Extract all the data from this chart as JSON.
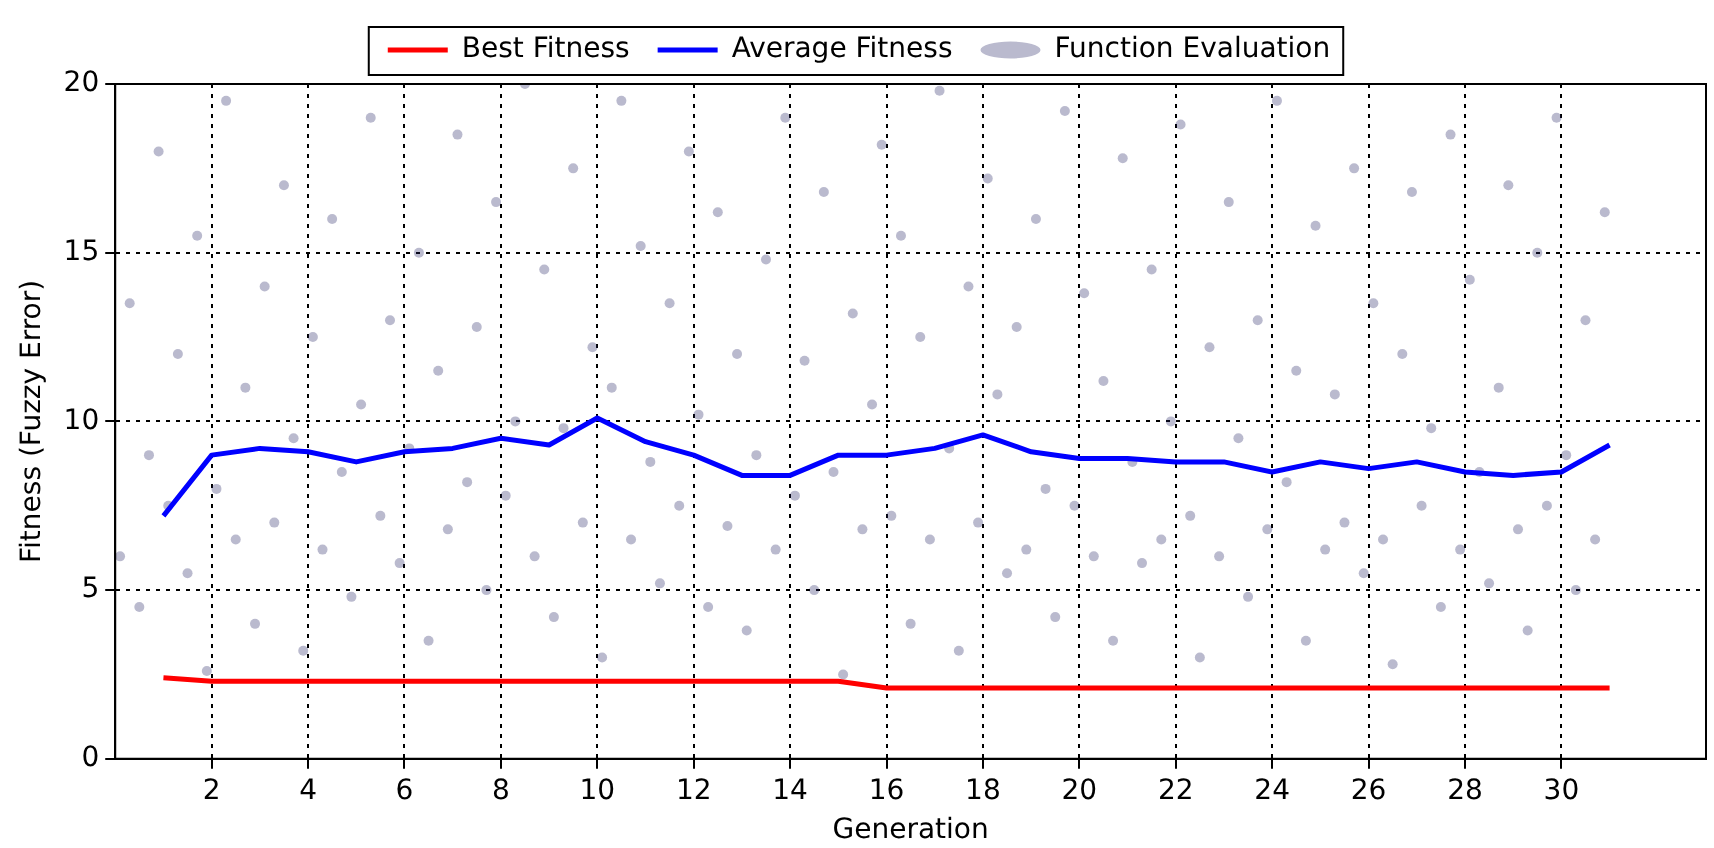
{
  "chart_data": {
    "type": "line",
    "xlabel": "Generation",
    "ylabel": "Fitness (Fuzzy Error)",
    "xlim": [
      0,
      33
    ],
    "ylim": [
      0,
      20
    ],
    "xticks": [
      2,
      4,
      6,
      8,
      10,
      12,
      14,
      16,
      18,
      20,
      22,
      24,
      26,
      28,
      30
    ],
    "yticks": [
      0,
      5,
      10,
      15,
      20
    ],
    "grid": true,
    "legend": "top",
    "line_style": "solid",
    "series": [
      {
        "name": "Best Fitness",
        "color": "#ff0000",
        "x": [
          1,
          2,
          3,
          4,
          5,
          6,
          7,
          8,
          9,
          10,
          11,
          12,
          13,
          14,
          15,
          16,
          17,
          18,
          19,
          20,
          21,
          22,
          23,
          24,
          25,
          26,
          27,
          28,
          29,
          30,
          31
        ],
        "values": [
          2.4,
          2.3,
          2.3,
          2.3,
          2.3,
          2.3,
          2.3,
          2.3,
          2.3,
          2.3,
          2.3,
          2.3,
          2.3,
          2.3,
          2.3,
          2.1,
          2.1,
          2.1,
          2.1,
          2.1,
          2.1,
          2.1,
          2.1,
          2.1,
          2.1,
          2.1,
          2.1,
          2.1,
          2.1,
          2.1,
          2.1
        ]
      },
      {
        "name": "Average Fitness",
        "color": "#0000ff",
        "x": [
          1,
          2,
          3,
          4,
          5,
          6,
          7,
          8,
          9,
          10,
          11,
          12,
          13,
          14,
          15,
          16,
          17,
          18,
          19,
          20,
          21,
          22,
          23,
          24,
          25,
          26,
          27,
          28,
          29,
          30,
          31
        ],
        "values": [
          7.2,
          9.0,
          9.2,
          9.1,
          8.8,
          9.1,
          9.2,
          9.5,
          9.3,
          10.1,
          9.4,
          9.0,
          8.4,
          8.4,
          9.0,
          9.0,
          9.2,
          9.6,
          9.1,
          8.9,
          8.9,
          8.8,
          8.8,
          8.5,
          8.8,
          8.6,
          8.8,
          8.5,
          8.4,
          8.5,
          9.3
        ]
      },
      {
        "name": "Function Evaluation",
        "type": "scatter",
        "marker": "circle",
        "color": "#1a1a5e",
        "x": [
          0.1,
          0.3,
          0.5,
          0.7,
          0.9,
          1.1,
          1.3,
          1.5,
          1.7,
          1.9,
          2.1,
          2.3,
          2.5,
          2.7,
          2.9,
          3.1,
          3.3,
          3.5,
          3.7,
          3.9,
          4.1,
          4.3,
          4.5,
          4.7,
          4.9,
          5.1,
          5.3,
          5.5,
          5.7,
          5.9,
          6.1,
          6.3,
          6.5,
          6.7,
          6.9,
          7.1,
          7.3,
          7.5,
          7.7,
          7.9,
          8.1,
          8.3,
          8.5,
          8.7,
          8.9,
          9.1,
          9.3,
          9.5,
          9.7,
          9.9,
          10.1,
          10.3,
          10.5,
          10.7,
          10.9,
          11.1,
          11.3,
          11.5,
          11.7,
          11.9,
          12.1,
          12.3,
          12.5,
          12.7,
          12.9,
          13.1,
          13.3,
          13.5,
          13.7,
          13.9,
          14.1,
          14.3,
          14.5,
          14.7,
          14.9,
          15.1,
          15.3,
          15.5,
          15.7,
          15.9,
          16.1,
          16.3,
          16.5,
          16.7,
          16.9,
          17.1,
          17.3,
          17.5,
          17.7,
          17.9,
          18.1,
          18.3,
          18.5,
          18.7,
          18.9,
          19.1,
          19.3,
          19.5,
          19.7,
          19.9,
          20.1,
          20.3,
          20.5,
          20.7,
          20.9,
          21.1,
          21.3,
          21.5,
          21.7,
          21.9,
          22.1,
          22.3,
          22.5,
          22.7,
          22.9,
          23.1,
          23.3,
          23.5,
          23.7,
          23.9,
          24.1,
          24.3,
          24.5,
          24.7,
          24.9,
          25.1,
          25.3,
          25.5,
          25.7,
          25.9,
          26.1,
          26.3,
          26.5,
          26.7,
          26.9,
          27.1,
          27.3,
          27.5,
          27.7,
          27.9,
          28.1,
          28.3,
          28.5,
          28.7,
          28.9,
          29.1,
          29.3,
          29.5,
          29.7,
          29.9,
          30.1,
          30.3,
          30.5,
          30.7,
          30.9
        ],
        "values": [
          6.0,
          13.5,
          4.5,
          9.0,
          18.0,
          7.5,
          12.0,
          5.5,
          15.5,
          2.6,
          8.0,
          19.5,
          6.5,
          11.0,
          4.0,
          14.0,
          7.0,
          17.0,
          9.5,
          3.2,
          12.5,
          6.2,
          16.0,
          8.5,
          4.8,
          10.5,
          19.0,
          7.2,
          13.0,
          5.8,
          9.2,
          15.0,
          3.5,
          11.5,
          6.8,
          18.5,
          8.2,
          12.8,
          5.0,
          16.5,
          7.8,
          10.0,
          20.0,
          6.0,
          14.5,
          4.2,
          9.8,
          17.5,
          7.0,
          12.2,
          3.0,
          11.0,
          19.5,
          6.5,
          15.2,
          8.8,
          5.2,
          13.5,
          7.5,
          18.0,
          10.2,
          4.5,
          16.2,
          6.9,
          12.0,
          3.8,
          9.0,
          14.8,
          6.2,
          19.0,
          7.8,
          11.8,
          5.0,
          16.8,
          8.5,
          2.5,
          13.2,
          6.8,
          10.5,
          18.2,
          7.2,
          15.5,
          4.0,
          12.5,
          6.5,
          19.8,
          9.2,
          3.2,
          14.0,
          7.0,
          17.2,
          10.8,
          5.5,
          12.8,
          6.2,
          16.0,
          8.0,
          4.2,
          19.2,
          7.5,
          13.8,
          6.0,
          11.2,
          3.5,
          17.8,
          8.8,
          5.8,
          14.5,
          6.5,
          10.0,
          18.8,
          7.2,
          3.0,
          12.2,
          6.0,
          16.5,
          9.5,
          4.8,
          13.0,
          6.8,
          19.5,
          8.2,
          11.5,
          3.5,
          15.8,
          6.2,
          10.8,
          7.0,
          17.5,
          5.5,
          13.5,
          6.5,
          2.8,
          12.0,
          16.8,
          7.5,
          9.8,
          4.5,
          18.5,
          6.2,
          14.2,
          8.5,
          5.2,
          11.0,
          17.0,
          6.8,
          3.8,
          15.0,
          7.5,
          19.0,
          9.0,
          5.0,
          13.0,
          6.5,
          16.2
        ]
      }
    ]
  }
}
